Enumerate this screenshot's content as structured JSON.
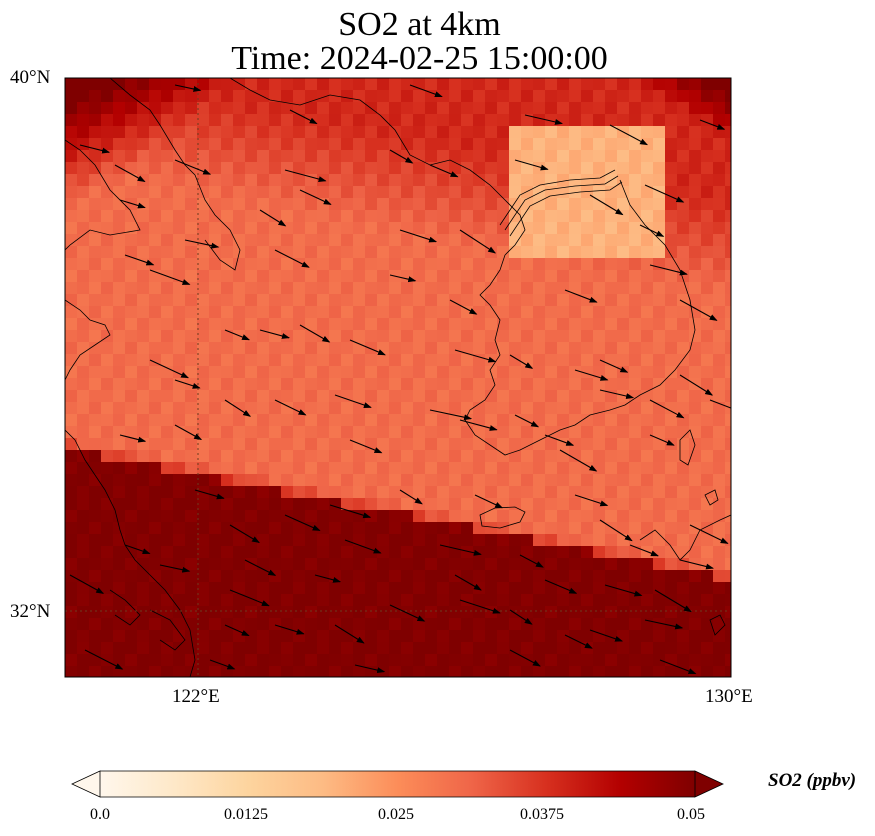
{
  "title": {
    "line1": "SO2 at 4km",
    "line2": "Time: 2024-02-25 15:00:00"
  },
  "map": {
    "lon_range": [
      120,
      130
    ],
    "lat_range": [
      31,
      40
    ],
    "lat_ticks": [
      {
        "value": 40,
        "label": "40°N"
      },
      {
        "value": 32,
        "label": "32°N"
      }
    ],
    "lon_ticks": [
      {
        "value": 122,
        "label": "122°E"
      },
      {
        "value": 130,
        "label": "130°E"
      }
    ],
    "gridlines": {
      "lon": [
        122
      ],
      "lat": [
        32
      ],
      "style": "dotted"
    },
    "field": "SO2 concentration (ppbv)",
    "wind_vectors": "shown"
  },
  "colorbar": {
    "label": "SO2 (ppbv)",
    "min": 0.0,
    "max": 0.05,
    "ticks": [
      "0.0",
      "0.0125",
      "0.025",
      "0.0375",
      "0.05"
    ],
    "colormap": [
      "#fff7ec",
      "#fee8c8",
      "#fdd49e",
      "#fdbb84",
      "#fc8d59",
      "#ef6548",
      "#d7301f",
      "#b30000",
      "#7f0000"
    ],
    "extend": "both"
  }
}
